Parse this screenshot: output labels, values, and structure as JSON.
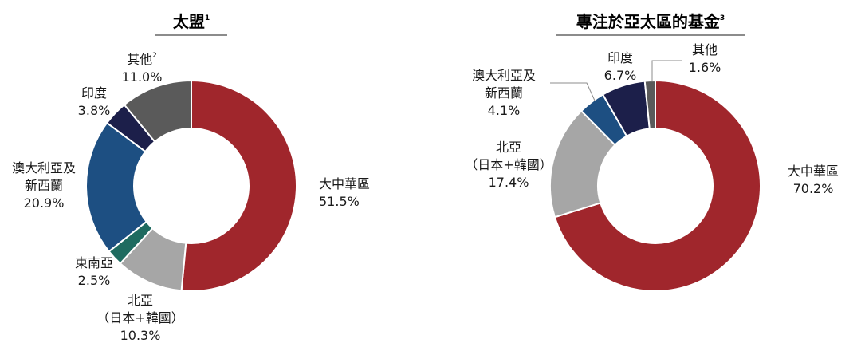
{
  "chart_data": [
    {
      "type": "pie",
      "title": "太盟",
      "title_superscript": "1",
      "colors_note": "donut",
      "slices": [
        {
          "label": "大中華區",
          "value": 51.5,
          "display": "51.5%",
          "color": "#a0262c"
        },
        {
          "label": "北亞\n（日本+韓國）",
          "value": 10.3,
          "display": "10.3%",
          "color": "#a6a6a6"
        },
        {
          "label": "東南亞",
          "value": 2.5,
          "display": "2.5%",
          "color": "#1f6b60"
        },
        {
          "label": "澳大利亞及\n新西蘭",
          "value": 20.9,
          "display": "20.9%",
          "color": "#1d4f82"
        },
        {
          "label": "印度",
          "value": 3.8,
          "display": "3.8%",
          "color": "#1c1f4a"
        },
        {
          "label": "其他",
          "label_superscript": "2",
          "value": 11.0,
          "display": "11.0%",
          "color": "#5a5a5a"
        }
      ]
    },
    {
      "type": "pie",
      "title": "專注於亞太區的基金",
      "title_superscript": "3",
      "slices": [
        {
          "label": "大中華區",
          "value": 70.2,
          "display": "70.2%",
          "color": "#a0262c"
        },
        {
          "label": "北亞\n（日本+韓國）",
          "value": 17.4,
          "display": "17.4%",
          "color": "#a6a6a6"
        },
        {
          "label": "澳大利亞及\n新西蘭",
          "value": 4.1,
          "display": "4.1%",
          "color": "#1d4f82"
        },
        {
          "label": "印度",
          "value": 6.7,
          "display": "6.7%",
          "color": "#1c1f4a"
        },
        {
          "label": "其他",
          "value": 1.6,
          "display": "1.6%",
          "color": "#5a5a5a"
        }
      ]
    }
  ]
}
